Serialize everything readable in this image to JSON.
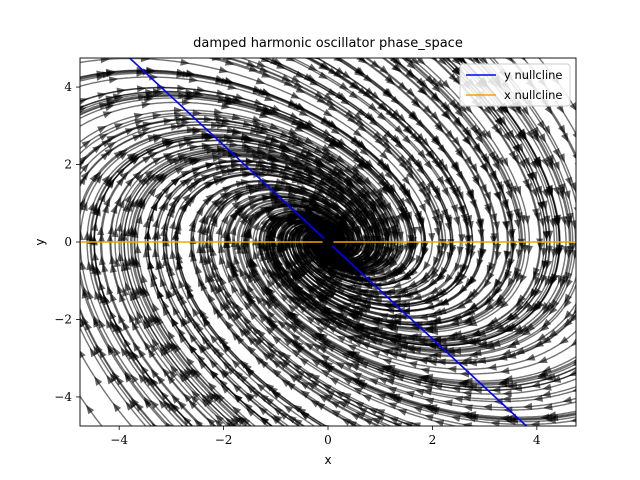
{
  "chart_data": {
    "type": "streamplot",
    "title": "damped harmonic oscillator phase_space",
    "xlabel": "x",
    "ylabel": "y",
    "xlim": [
      -4.75,
      4.75
    ],
    "ylim": [
      -4.75,
      4.75
    ],
    "xticks": [
      -4,
      -2,
      0,
      2,
      4
    ],
    "yticks": [
      -4,
      -2,
      0,
      2,
      4
    ],
    "xtick_labels": [
      "−4",
      "−2",
      "0",
      "2",
      "4"
    ],
    "ytick_labels": [
      "−4",
      "−2",
      "0",
      "2",
      "4"
    ],
    "system": {
      "dx_dt": "y",
      "dy_dt": "-x - 0.8*y"
    },
    "series": [
      {
        "name": "y nullcline",
        "color": "#0000ff",
        "kind": "line",
        "x": [
          -4.75,
          4.75
        ],
        "y": [
          5.9375,
          -5.9375
        ]
      },
      {
        "name": "x nullcline",
        "color": "#f5a300",
        "kind": "line",
        "x": [
          -4.75,
          4.75
        ],
        "y": [
          0,
          0
        ]
      }
    ],
    "equilibrium": {
      "x": 0,
      "y": 0,
      "color": "#000000"
    },
    "stream_color": "#000000",
    "grid": false,
    "legend": {
      "placement": "top-right",
      "entries": [
        "y nullcline",
        "x nullcline"
      ]
    }
  }
}
